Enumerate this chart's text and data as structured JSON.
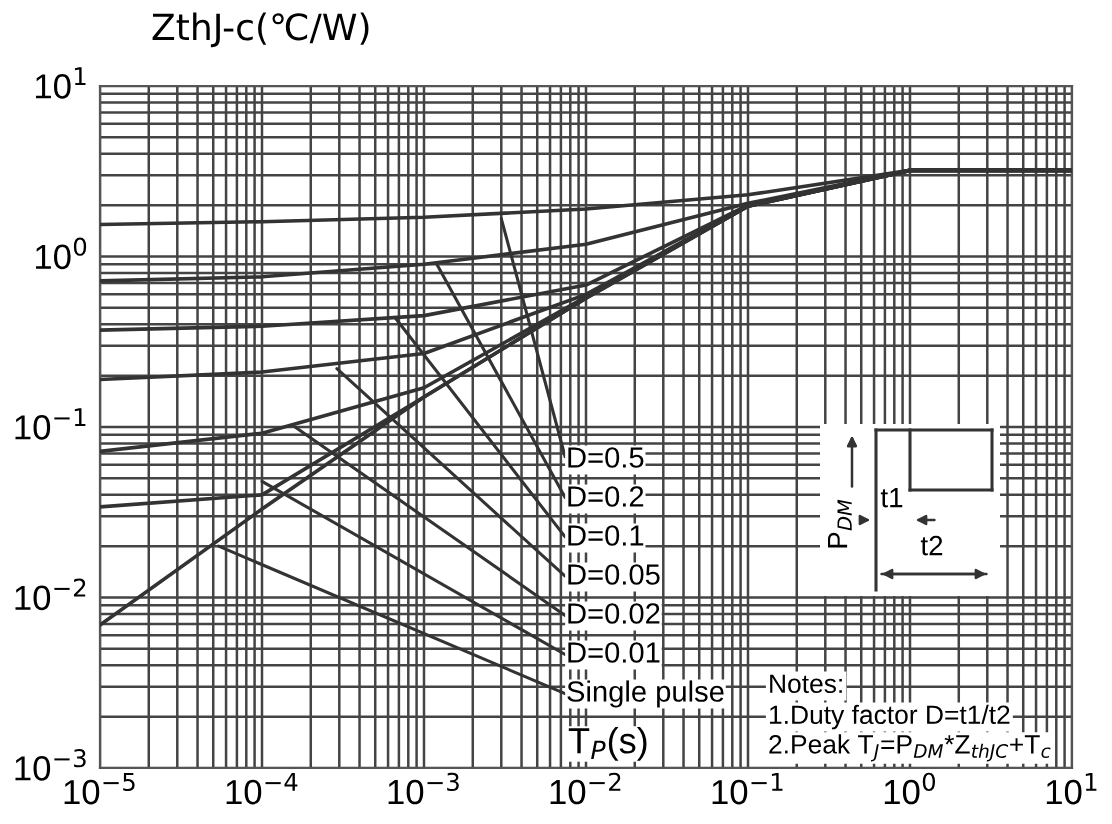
{
  "chart_data": {
    "type": "line",
    "ylabel": "ZthJ-c(℃/W)",
    "xlabel": "T$_{P}$(s)",
    "log": "xy",
    "x": [
      1e-05,
      0.0001,
      0.001,
      0.01,
      0.1,
      1,
      10
    ],
    "series": [
      {
        "color": "#333333",
        "values": [
          1.54,
          1.6,
          1.7,
          1.9,
          2.3,
          3.2,
          3.2
        ]
      },
      {
        "color": "#333333",
        "values": [
          0.72,
          0.76,
          0.9,
          1.18,
          2.05,
          3.2,
          3.2
        ]
      },
      {
        "color": "#333333",
        "values": [
          0.37,
          0.39,
          0.45,
          0.68,
          2.0,
          3.2,
          3.2
        ]
      },
      {
        "color": "#333333",
        "values": [
          0.19,
          0.21,
          0.27,
          0.6,
          1.98,
          3.2,
          3.2
        ]
      },
      {
        "color": "#333333",
        "values": [
          0.072,
          0.092,
          0.17,
          0.58,
          1.97,
          3.2,
          3.2
        ]
      },
      {
        "color": "#333333",
        "values": [
          0.034,
          0.04,
          0.15,
          0.57,
          1.97,
          3.2,
          3.2
        ]
      },
      {
        "color": "#333333",
        "values": [
          0.0069,
          0.033,
          0.15,
          0.57,
          1.97,
          3.2,
          3.2
        ]
      }
    ],
    "xlim": [
      1e-05,
      10
    ],
    "ylim": [
      0.001,
      10
    ],
    "xticks": [
      {
        "value": 1e-05,
        "label": "10$^{−5}$"
      },
      {
        "value": 0.0001,
        "label": "10$^{−4}$"
      },
      {
        "value": 0.001,
        "label": "10$^{−3}$"
      },
      {
        "value": 0.01,
        "label": "10$^{−2}$"
      },
      {
        "value": 0.1,
        "label": "10$^{−1}$"
      },
      {
        "value": 1,
        "label": "10$^{0}$"
      },
      {
        "value": 10,
        "label": "10$^{1}$"
      }
    ],
    "yticks": [
      {
        "value": 0.001,
        "label": "10$^{−3}$"
      },
      {
        "value": 0.01,
        "label": "10$^{−2}$"
      },
      {
        "value": 0.1,
        "label": "10$^{−1}$"
      },
      {
        "value": 1,
        "label": "10$^{0}$"
      },
      {
        "value": 10,
        "label": "10$^{1}$"
      }
    ],
    "grid": true,
    "marker": "none",
    "line_style": "solid",
    "annotations": [
      {
        "text": "D=0.5",
        "x": 0.003,
        "y": 1.67
      },
      {
        "text": "D=0.2",
        "x": 0.0012,
        "y": 0.9
      },
      {
        "text": "D=0.1",
        "x": 0.00066,
        "y": 0.44
      },
      {
        "text": "D=0.05",
        "x": 0.00029,
        "y": 0.22
      },
      {
        "text": "D=0.02",
        "x": 0.00016,
        "y": 0.1
      },
      {
        "text": "D=0.01",
        "x": 0.0001,
        "y": 0.048
      },
      {
        "text": "Single pulse",
        "x": 5.4e-05,
        "y": 0.02
      },
      "Notes:",
      "1.Duty factor D=t1/t2",
      "2.Peak T$_{J}$=P$_{DM}$*Z$_{thJC}$+T$_{c}$",
      "P$_{DM}$",
      "t1",
      "t2"
    ]
  }
}
